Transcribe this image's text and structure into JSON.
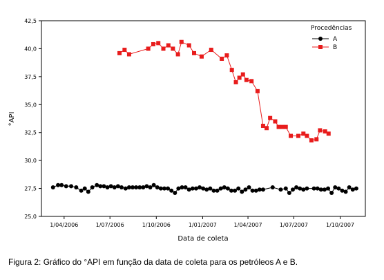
{
  "caption": "Figura 2: Gráfico do °API em função da data de coleta para os petróleos A e B.",
  "chart_data": {
    "type": "scatter",
    "xlabel": "Data de coleta",
    "ylabel": "°API",
    "ylim": [
      25.0,
      42.5
    ],
    "yticks": [
      25.0,
      27.5,
      30.0,
      32.5,
      35.0,
      37.5,
      40.0,
      42.5
    ],
    "ytick_labels": [
      "25,0",
      "27,5",
      "30,0",
      "32,5",
      "35,0",
      "37,5",
      "40,0",
      "42,5"
    ],
    "xlim": [
      "2006-02-15",
      "2007-11-20"
    ],
    "xticks": [
      "2006-04-01",
      "2006-07-01",
      "2006-10-01",
      "2007-01-01",
      "2007-04-01",
      "2007-07-01",
      "2007-10-01"
    ],
    "xtick_labels": [
      "1/04/2006",
      "1/07/2006",
      "1/10/2006",
      "1/01/2007",
      "1/04/2007",
      "1/07/2007",
      "1/10/2007"
    ],
    "grid": false,
    "legend": {
      "title": "Procedências",
      "placement": "top-right",
      "entries": [
        "A",
        "B"
      ]
    },
    "series": [
      {
        "name": "A",
        "marker": "circle",
        "color": "#000000",
        "points": [
          [
            "2006-03-10",
            27.6
          ],
          [
            "2006-03-20",
            27.8
          ],
          [
            "2006-03-27",
            27.8
          ],
          [
            "2006-04-05",
            27.7
          ],
          [
            "2006-04-15",
            27.7
          ],
          [
            "2006-04-25",
            27.6
          ],
          [
            "2006-05-05",
            27.3
          ],
          [
            "2006-05-12",
            27.5
          ],
          [
            "2006-05-19",
            27.2
          ],
          [
            "2006-05-27",
            27.6
          ],
          [
            "2006-06-05",
            27.8
          ],
          [
            "2006-06-12",
            27.7
          ],
          [
            "2006-06-19",
            27.7
          ],
          [
            "2006-06-26",
            27.6
          ],
          [
            "2006-07-03",
            27.7
          ],
          [
            "2006-07-10",
            27.6
          ],
          [
            "2006-07-17",
            27.7
          ],
          [
            "2006-07-24",
            27.6
          ],
          [
            "2006-08-01",
            27.5
          ],
          [
            "2006-08-08",
            27.6
          ],
          [
            "2006-08-15",
            27.6
          ],
          [
            "2006-08-22",
            27.6
          ],
          [
            "2006-08-29",
            27.6
          ],
          [
            "2006-09-05",
            27.6
          ],
          [
            "2006-09-12",
            27.7
          ],
          [
            "2006-09-19",
            27.6
          ],
          [
            "2006-09-26",
            27.8
          ],
          [
            "2006-10-03",
            27.6
          ],
          [
            "2006-10-10",
            27.5
          ],
          [
            "2006-10-17",
            27.5
          ],
          [
            "2006-10-24",
            27.5
          ],
          [
            "2006-10-31",
            27.3
          ],
          [
            "2006-11-07",
            27.1
          ],
          [
            "2006-11-14",
            27.5
          ],
          [
            "2006-11-21",
            27.6
          ],
          [
            "2006-11-28",
            27.6
          ],
          [
            "2006-12-05",
            27.4
          ],
          [
            "2006-12-12",
            27.5
          ],
          [
            "2006-12-19",
            27.5
          ],
          [
            "2006-12-26",
            27.6
          ],
          [
            "2007-01-02",
            27.5
          ],
          [
            "2007-01-09",
            27.4
          ],
          [
            "2007-01-16",
            27.5
          ],
          [
            "2007-01-23",
            27.3
          ],
          [
            "2007-01-30",
            27.3
          ],
          [
            "2007-02-06",
            27.5
          ],
          [
            "2007-02-13",
            27.6
          ],
          [
            "2007-02-20",
            27.5
          ],
          [
            "2007-02-27",
            27.3
          ],
          [
            "2007-03-06",
            27.3
          ],
          [
            "2007-03-13",
            27.5
          ],
          [
            "2007-03-20",
            27.2
          ],
          [
            "2007-03-27",
            27.4
          ],
          [
            "2007-04-03",
            27.6
          ],
          [
            "2007-04-10",
            27.3
          ],
          [
            "2007-04-17",
            27.3
          ],
          [
            "2007-04-24",
            27.4
          ],
          [
            "2007-05-01",
            27.4
          ],
          [
            "2007-05-20",
            27.6
          ],
          [
            "2007-06-05",
            27.4
          ],
          [
            "2007-06-15",
            27.5
          ],
          [
            "2007-06-22",
            27.1
          ],
          [
            "2007-06-29",
            27.4
          ],
          [
            "2007-07-06",
            27.6
          ],
          [
            "2007-07-13",
            27.5
          ],
          [
            "2007-07-20",
            27.4
          ],
          [
            "2007-07-27",
            27.5
          ],
          [
            "2007-08-10",
            27.5
          ],
          [
            "2007-08-17",
            27.5
          ],
          [
            "2007-08-24",
            27.4
          ],
          [
            "2007-08-31",
            27.4
          ],
          [
            "2007-09-07",
            27.5
          ],
          [
            "2007-09-14",
            27.1
          ],
          [
            "2007-09-21",
            27.6
          ],
          [
            "2007-09-28",
            27.5
          ],
          [
            "2007-10-05",
            27.3
          ],
          [
            "2007-10-12",
            27.2
          ],
          [
            "2007-10-19",
            27.6
          ],
          [
            "2007-10-26",
            27.4
          ],
          [
            "2007-11-02",
            27.5
          ]
        ]
      },
      {
        "name": "B",
        "marker": "square",
        "color": "#e81c1c",
        "points": [
          [
            "2006-07-20",
            39.6
          ],
          [
            "2006-07-30",
            39.9
          ],
          [
            "2006-08-08",
            39.5
          ],
          [
            "2006-09-15",
            40.0
          ],
          [
            "2006-09-25",
            40.4
          ],
          [
            "2006-10-05",
            40.5
          ],
          [
            "2006-10-15",
            40.0
          ],
          [
            "2006-10-25",
            40.3
          ],
          [
            "2006-11-03",
            40.0
          ],
          [
            "2006-11-13",
            39.5
          ],
          [
            "2006-11-20",
            40.6
          ],
          [
            "2006-12-05",
            40.3
          ],
          [
            "2006-12-15",
            39.6
          ],
          [
            "2006-12-30",
            39.3
          ],
          [
            "2007-01-18",
            39.9
          ],
          [
            "2007-02-08",
            39.1
          ],
          [
            "2007-02-18",
            39.4
          ],
          [
            "2007-02-28",
            38.1
          ],
          [
            "2007-03-08",
            37.0
          ],
          [
            "2007-03-15",
            37.4
          ],
          [
            "2007-03-22",
            37.7
          ],
          [
            "2007-03-29",
            37.2
          ],
          [
            "2007-04-08",
            37.1
          ],
          [
            "2007-04-20",
            36.2
          ],
          [
            "2007-05-01",
            33.1
          ],
          [
            "2007-05-08",
            32.9
          ],
          [
            "2007-05-15",
            33.8
          ],
          [
            "2007-05-25",
            33.5
          ],
          [
            "2007-06-01",
            33.0
          ],
          [
            "2007-06-08",
            33.0
          ],
          [
            "2007-06-15",
            33.0
          ],
          [
            "2007-06-25",
            32.2
          ],
          [
            "2007-07-10",
            32.2
          ],
          [
            "2007-07-20",
            32.4
          ],
          [
            "2007-07-27",
            32.2
          ],
          [
            "2007-08-05",
            31.8
          ],
          [
            "2007-08-15",
            31.9
          ],
          [
            "2007-08-22",
            32.7
          ],
          [
            "2007-09-01",
            32.6
          ],
          [
            "2007-09-08",
            32.4
          ]
        ]
      }
    ]
  }
}
